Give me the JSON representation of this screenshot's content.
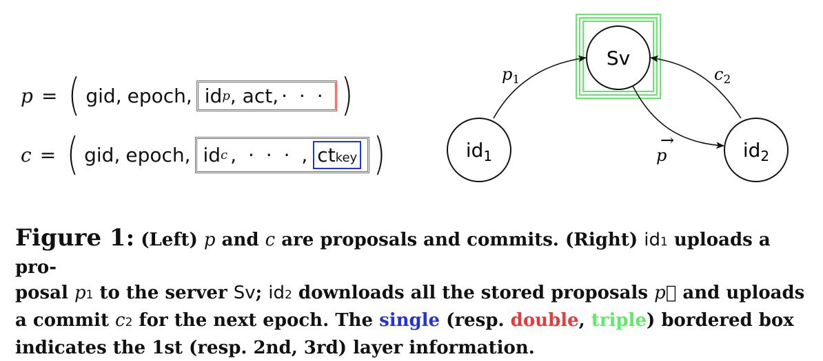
{
  "formula_p": {
    "var": "p",
    "eq": "=",
    "gid": "gid,",
    "epoch": "epoch,",
    "id": "id",
    "id_sub": "p",
    "act": ", act,",
    "dots": "· · ·"
  },
  "formula_c": {
    "var": "c",
    "eq": "=",
    "gid": "gid,",
    "epoch": "epoch,",
    "id": "id",
    "id_sub": "c",
    "dots": ", · · · ,",
    "ct": "ct",
    "ct_sub": "key"
  },
  "diagram": {
    "nodes": {
      "server": "Sv",
      "id1": "id",
      "id1_sub": "1",
      "id2": "id",
      "id2_sub": "2"
    },
    "edges": {
      "p1": "p",
      "p1_sub": "1",
      "c2": "c",
      "c2_sub": "2",
      "pvec": "p",
      "pvec_arrow": "⃗"
    },
    "colors": {
      "single": "#2433d6",
      "double": "#e53b3b",
      "triple": "#63e86b"
    }
  },
  "caption": {
    "figure": "Figure 1:",
    "t1": "(Left)",
    "p": "p",
    "t2": "and",
    "c": "c",
    "t3": "are proposals and commits. (Right)",
    "id": "id",
    "one": "1",
    "t4": "uploads a pro-",
    "t5": "posal",
    "p1": "p",
    "t6": "to the server",
    "sv": "Sv",
    "t7": ";",
    "two": "2",
    "t8": "downloads all the stored proposals",
    "pvec": "p⃗",
    "t9": "and uploads",
    "t10": "a commit",
    "c2": "c",
    "t11": "for the next epoch. The",
    "single": "single",
    "t12": "(resp.",
    "double": "double",
    "t13": ",",
    "triple": "triple",
    "t14": ") bordered box",
    "t15": "indicates the 1st (resp. 2nd, 3rd) layer information."
  }
}
